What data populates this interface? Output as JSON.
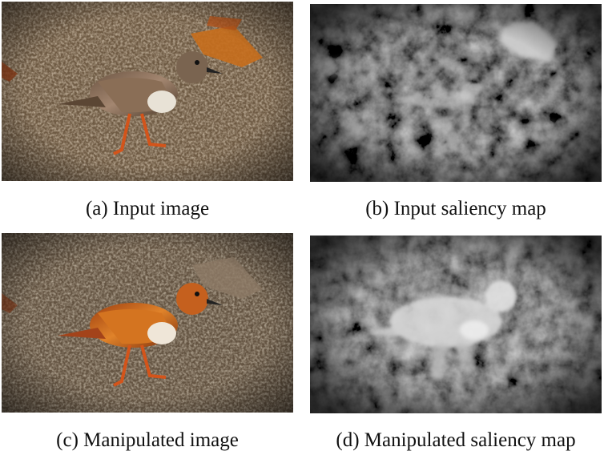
{
  "figure": {
    "panels": [
      {
        "id": "a",
        "caption": "(a) Input image"
      },
      {
        "id": "b",
        "caption": "(b) Input saliency map"
      },
      {
        "id": "c",
        "caption": "(c) Manipulated image"
      },
      {
        "id": "d",
        "caption": "(d) Manipulated saliency map"
      }
    ]
  }
}
